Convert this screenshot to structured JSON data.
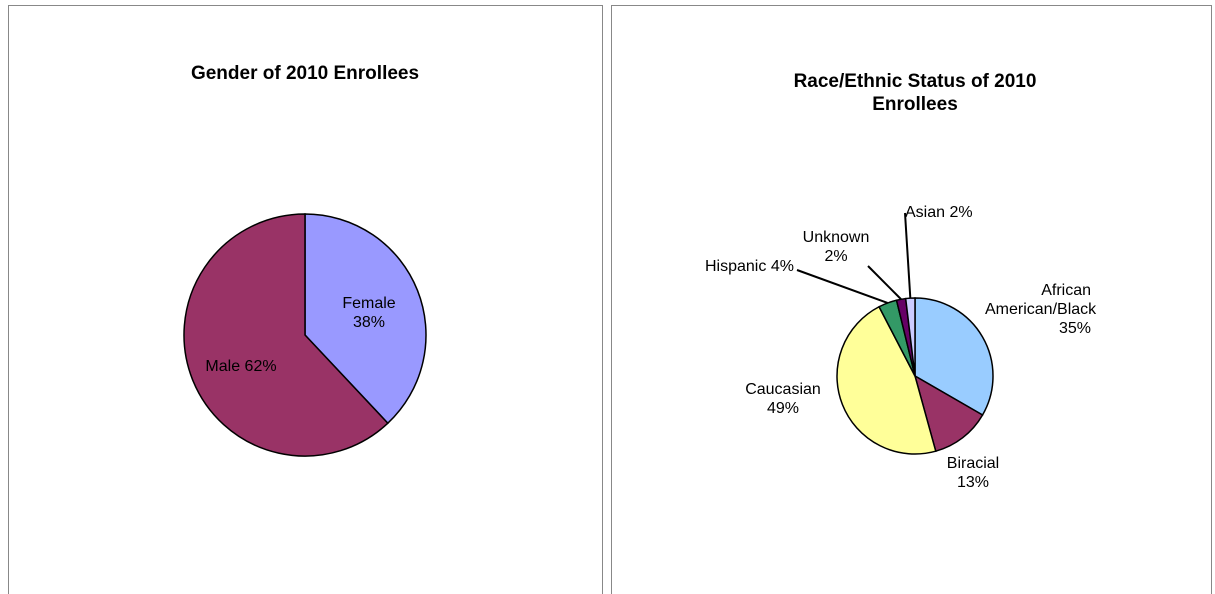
{
  "chart_data": [
    {
      "type": "pie",
      "title": "Gender of 2010 Enrollees",
      "categories": [
        "Female",
        "Male"
      ],
      "values": [
        38,
        62
      ],
      "value_labels": [
        "38%",
        "62%"
      ],
      "colors": [
        "#9999ff",
        "#993366"
      ]
    },
    {
      "type": "pie",
      "title": "Race/Ethnic Status of 2010 Enrollees",
      "categories": [
        "African American/Black",
        "Biracial",
        "Caucasian",
        "Hispanic",
        "Unknown",
        "Asian"
      ],
      "values": [
        35,
        13,
        49,
        4,
        2,
        2
      ],
      "value_labels": [
        "35%",
        "13%",
        "49%",
        "4%",
        "2%",
        "2%"
      ],
      "colors": [
        "#99ccff",
        "#993366",
        "#ffff99",
        "#339966",
        "#660066",
        "#ccccff"
      ]
    }
  ]
}
